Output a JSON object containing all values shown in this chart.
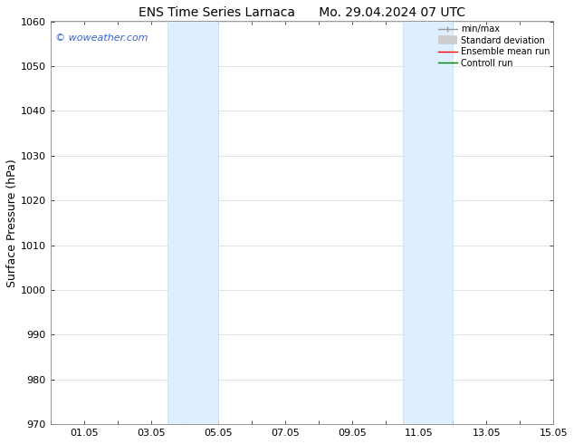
{
  "title_left": "ENS Time Series Larnaca",
  "title_right": "Mo. 29.04.2024 07 UTC",
  "ylabel": "Surface Pressure (hPa)",
  "xlim": [
    0,
    15
  ],
  "ylim": [
    970,
    1060
  ],
  "yticks": [
    970,
    980,
    990,
    1000,
    1010,
    1020,
    1030,
    1040,
    1050,
    1060
  ],
  "shaded_bands": [
    {
      "x_start": 3.5,
      "x_end": 5.0
    },
    {
      "x_start": 10.5,
      "x_end": 12.0
    }
  ],
  "shaded_color": "#ddeeff",
  "shaded_edge_color": "#bbddee",
  "watermark_text": "© woweather.com",
  "watermark_color": "#3366cc",
  "bg_color": "#ffffff",
  "grid_color": "#cccccc",
  "tick_label_fontsize": 8,
  "axis_label_fontsize": 9,
  "title_fontsize": 10,
  "legend_fontsize": 7
}
